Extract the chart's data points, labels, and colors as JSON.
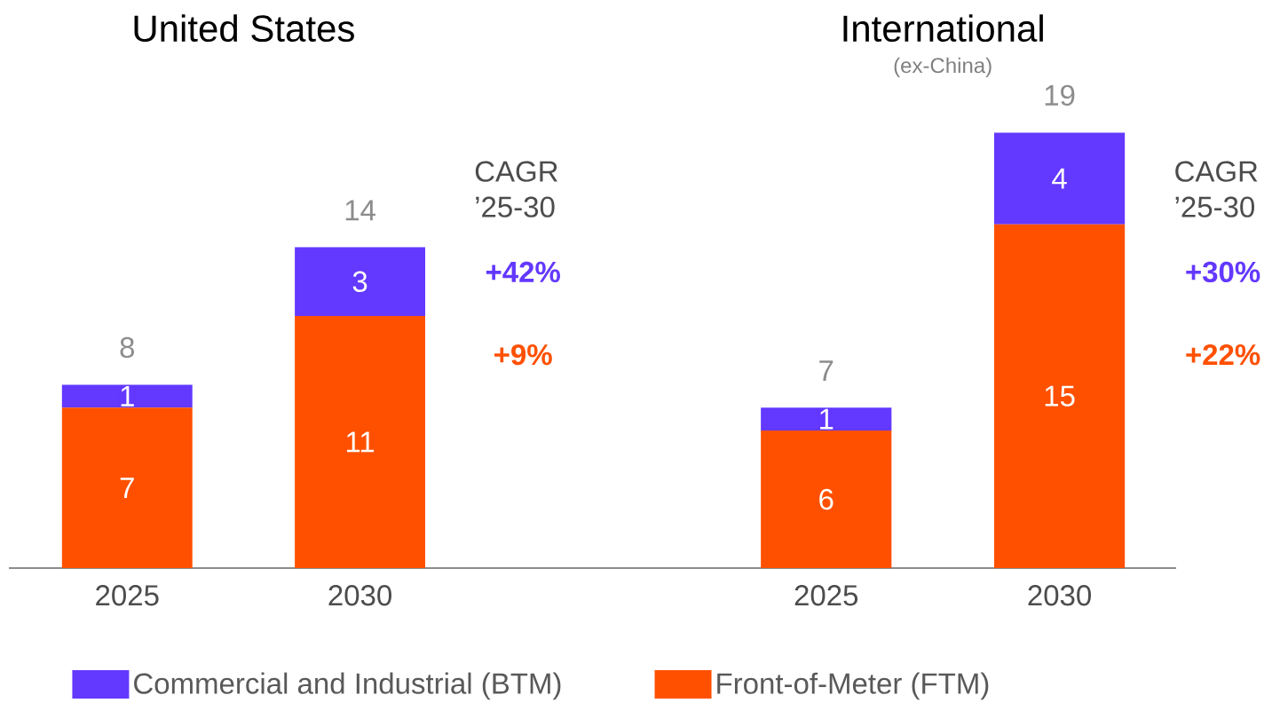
{
  "chart_data": [
    {
      "type": "bar",
      "stacked": true,
      "title": "United States",
      "categories": [
        "2025",
        "2030"
      ],
      "series": [
        {
          "name": "Front-of-Meter (FTM)",
          "color": "#ff5000",
          "values": [
            7,
            11
          ]
        },
        {
          "name": "Commercial and Industrial (BTM)",
          "color": "#6338ff",
          "values": [
            1,
            3
          ]
        }
      ],
      "totals": [
        "8",
        "14"
      ],
      "data_labels": true,
      "legend": "bottom",
      "annotations": [
        "CAGR ’25-30",
        "+42%",
        "+9%"
      ]
    },
    {
      "type": "bar",
      "stacked": true,
      "title": "International",
      "subtitle": "(ex-China)",
      "categories": [
        "2025",
        "2030"
      ],
      "series": [
        {
          "color": "#ff5000",
          "values": [
            6,
            15
          ]
        },
        {
          "color": "#6338ff",
          "values": [
            1,
            4
          ]
        }
      ],
      "totals": [
        "7",
        "19"
      ],
      "data_labels": true,
      "annotations": [
        "CAGR ’25-30",
        "+30%",
        "+22%"
      ]
    }
  ]
}
